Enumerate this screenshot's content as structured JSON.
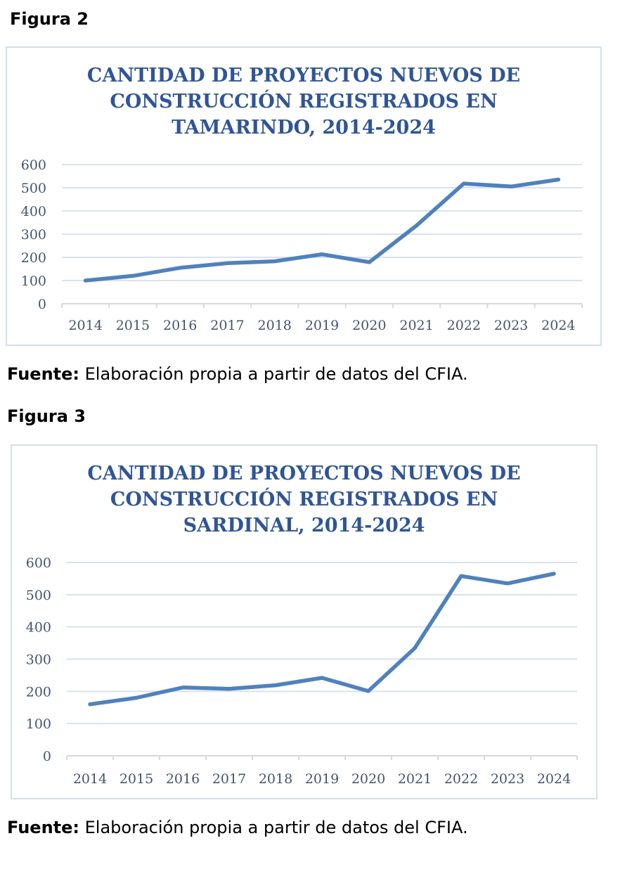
{
  "figures": [
    {
      "label": "Figura 2",
      "title_lines": [
        "CANTIDAD DE PROYECTOS NUEVOS DE",
        "CONSTRUCCIÓN REGISTRADOS EN",
        "TAMARINDO, 2014-2024"
      ],
      "source_label": "Fuente:",
      "source_text": " Elaboración propia a partir de datos del CFIA."
    },
    {
      "label": "Figura 3",
      "title_lines": [
        "CANTIDAD DE PROYECTOS NUEVOS DE",
        "CONSTRUCCIÓN REGISTRADOS EN",
        "SARDINAL, 2014-2024"
      ],
      "source_label": "Fuente:",
      "source_text": " Elaboración propia a partir de datos del CFIA."
    }
  ],
  "chart_data": [
    {
      "type": "line",
      "title": "CANTIDAD DE PROYECTOS NUEVOS DE CONSTRUCCIÓN REGISTRADOS EN TAMARINDO, 2014-2024",
      "categories": [
        "2014",
        "2015",
        "2016",
        "2017",
        "2018",
        "2019",
        "2020",
        "2021",
        "2022",
        "2023",
        "2024"
      ],
      "series": [
        {
          "values": [
            100,
            120,
            155,
            175,
            183,
            213,
            179,
            337,
            518,
            505,
            535
          ]
        }
      ],
      "yticks": [
        0,
        100,
        200,
        300,
        400,
        500,
        600
      ],
      "ylim": [
        0,
        600
      ],
      "grid": true,
      "legend": "none",
      "line_color": "#4f81bd"
    },
    {
      "type": "line",
      "title": "CANTIDAD DE PROYECTOS NUEVOS DE CONSTRUCCIÓN REGISTRADOS EN SARDINAL, 2014-2024",
      "categories": [
        "2014",
        "2015",
        "2016",
        "2017",
        "2018",
        "2019",
        "2020",
        "2021",
        "2022",
        "2023",
        "2024"
      ],
      "series": [
        {
          "values": [
            160,
            180,
            212,
            208,
            219,
            242,
            201,
            334,
            558,
            535,
            565
          ]
        }
      ],
      "yticks": [
        0,
        100,
        200,
        300,
        400,
        500,
        600
      ],
      "ylim": [
        0,
        600
      ],
      "grid": true,
      "legend": "none",
      "line_color": "#4f81bd"
    }
  ]
}
